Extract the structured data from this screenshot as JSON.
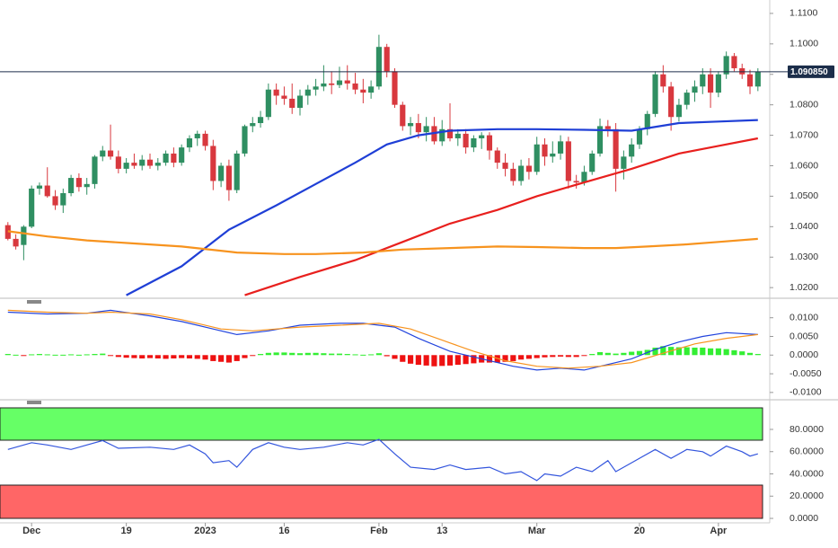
{
  "chart_data": [
    {
      "type": "candlestick",
      "xlim": [
        -1,
        96.5
      ],
      "ylim": [
        1.0168,
        1.1144
      ],
      "yticks": [
        {
          "value": 1.11,
          "label": "1.1100"
        },
        {
          "value": 1.1,
          "label": "1.1000"
        },
        {
          "value": 1.09,
          "label": "1.0900"
        },
        {
          "value": 1.08,
          "label": "1.0800"
        },
        {
          "value": 1.07,
          "label": "1.0700"
        },
        {
          "value": 1.06,
          "label": "1.0600"
        },
        {
          "value": 1.05,
          "label": "1.0500"
        },
        {
          "value": 1.04,
          "label": "1.0400"
        },
        {
          "value": 1.03,
          "label": "1.0300"
        },
        {
          "value": 1.02,
          "label": "1.0200"
        }
      ],
      "up_color": "#2f8f62",
      "down_color": "#d8383e",
      "last_price": {
        "value": 1.09085,
        "label": "1.090850"
      },
      "ohlc": [
        [
          1.0405,
          1.0415,
          1.0355,
          1.036
        ],
        [
          1.036,
          1.0375,
          1.0325,
          1.0335
        ],
        [
          1.034,
          1.0405,
          1.029,
          1.04
        ],
        [
          1.04,
          1.0535,
          1.0395,
          1.0525
        ],
        [
          1.0525,
          1.0545,
          1.0505,
          1.0535
        ],
        [
          1.0535,
          1.0595,
          1.0495,
          1.05
        ],
        [
          1.05,
          1.052,
          1.0455,
          1.047
        ],
        [
          1.047,
          1.0525,
          1.0445,
          1.051
        ],
        [
          1.051,
          1.057,
          1.05,
          1.056
        ],
        [
          1.056,
          1.0575,
          1.0515,
          1.053
        ],
        [
          1.053,
          1.056,
          1.0505,
          1.054
        ],
        [
          1.054,
          1.0635,
          1.0525,
          1.063
        ],
        [
          1.063,
          1.0665,
          1.0615,
          1.065
        ],
        [
          1.065,
          1.0735,
          1.062,
          1.063
        ],
        [
          1.063,
          1.065,
          1.0575,
          1.059
        ],
        [
          1.059,
          1.0625,
          1.0575,
          1.061
        ],
        [
          1.061,
          1.064,
          1.059,
          1.06
        ],
        [
          1.06,
          1.0635,
          1.0585,
          1.062
        ],
        [
          1.062,
          1.064,
          1.059,
          1.06
        ],
        [
          1.06,
          1.0625,
          1.0585,
          1.061
        ],
        [
          1.061,
          1.065,
          1.06,
          1.064
        ],
        [
          1.064,
          1.066,
          1.0595,
          1.061
        ],
        [
          1.061,
          1.067,
          1.06,
          1.066
        ],
        [
          1.066,
          1.07,
          1.0645,
          1.069
        ],
        [
          1.069,
          1.0715,
          1.0665,
          1.0705
        ],
        [
          1.0705,
          1.0715,
          1.065,
          1.0665
        ],
        [
          1.0665,
          1.0685,
          1.052,
          1.055
        ],
        [
          1.055,
          1.061,
          1.053,
          1.06
        ],
        [
          1.06,
          1.062,
          1.0485,
          1.052
        ],
        [
          1.052,
          1.065,
          1.051,
          1.064
        ],
        [
          1.064,
          1.0735,
          1.063,
          1.073
        ],
        [
          1.073,
          1.076,
          1.071,
          1.074
        ],
        [
          1.074,
          1.078,
          1.0725,
          1.076
        ],
        [
          1.076,
          1.087,
          1.075,
          1.085
        ],
        [
          1.085,
          1.087,
          1.08,
          1.083
        ],
        [
          1.083,
          1.086,
          1.08,
          1.082
        ],
        [
          1.082,
          1.087,
          1.077,
          1.079
        ],
        [
          1.079,
          1.085,
          1.0765,
          1.083
        ],
        [
          1.083,
          1.0865,
          1.08,
          1.085
        ],
        [
          1.085,
          1.0885,
          1.083,
          1.086
        ],
        [
          1.086,
          1.093,
          1.0845,
          1.087
        ],
        [
          1.087,
          1.091,
          1.0835,
          1.0865
        ],
        [
          1.0865,
          1.0925,
          1.0855,
          1.088
        ],
        [
          1.088,
          1.093,
          1.085,
          1.087
        ],
        [
          1.087,
          1.0905,
          1.0835,
          1.085
        ],
        [
          1.085,
          1.0885,
          1.0805,
          1.084
        ],
        [
          1.084,
          1.088,
          1.082,
          1.086
        ],
        [
          1.086,
          1.103,
          1.085,
          1.099
        ],
        [
          1.099,
          1.1,
          1.089,
          1.091
        ],
        [
          1.091,
          1.092,
          1.079,
          1.08
        ],
        [
          1.08,
          1.081,
          1.0715,
          1.073
        ],
        [
          1.073,
          1.076,
          1.07,
          1.074
        ],
        [
          1.074,
          1.077,
          1.069,
          1.071
        ],
        [
          1.071,
          1.076,
          1.068,
          1.073
        ],
        [
          1.073,
          1.076,
          1.067,
          1.068
        ],
        [
          1.068,
          1.075,
          1.0665,
          1.072
        ],
        [
          1.072,
          1.0805,
          1.068,
          1.069
        ],
        [
          1.069,
          1.072,
          1.0665,
          1.0705
        ],
        [
          1.0705,
          1.072,
          1.064,
          1.066
        ],
        [
          1.066,
          1.07,
          1.0645,
          1.069
        ],
        [
          1.069,
          1.071,
          1.0655,
          1.07
        ],
        [
          1.07,
          1.071,
          1.062,
          1.065
        ],
        [
          1.065,
          1.066,
          1.059,
          1.061
        ],
        [
          1.061,
          1.064,
          1.0565,
          1.059
        ],
        [
          1.059,
          1.061,
          1.0535,
          1.055
        ],
        [
          1.055,
          1.062,
          1.0535,
          1.06
        ],
        [
          1.06,
          1.0625,
          1.0555,
          1.058
        ],
        [
          1.058,
          1.0695,
          1.057,
          1.067
        ],
        [
          1.067,
          1.069,
          1.06,
          1.063
        ],
        [
          1.063,
          1.068,
          1.061,
          1.064
        ],
        [
          1.064,
          1.07,
          1.062,
          1.068
        ],
        [
          1.068,
          1.0695,
          1.0525,
          1.055
        ],
        [
          1.055,
          1.057,
          1.0525,
          1.0545
        ],
        [
          1.0545,
          1.06,
          1.0535,
          1.058
        ],
        [
          1.058,
          1.065,
          1.057,
          1.064
        ],
        [
          1.064,
          1.0755,
          1.063,
          1.073
        ],
        [
          1.073,
          1.075,
          1.0695,
          1.072
        ],
        [
          1.072,
          1.074,
          1.0515,
          1.059
        ],
        [
          1.059,
          1.065,
          1.0555,
          1.063
        ],
        [
          1.063,
          1.069,
          1.061,
          1.067
        ],
        [
          1.067,
          1.073,
          1.0655,
          1.072
        ],
        [
          1.072,
          1.078,
          1.07,
          1.077
        ],
        [
          1.077,
          1.091,
          1.076,
          1.09
        ],
        [
          1.09,
          1.093,
          1.084,
          1.086
        ],
        [
          1.086,
          1.0875,
          1.0715,
          1.076
        ],
        [
          1.076,
          1.082,
          1.0745,
          1.08
        ],
        [
          1.08,
          1.085,
          1.0785,
          1.084
        ],
        [
          1.084,
          1.088,
          1.081,
          1.086
        ],
        [
          1.086,
          1.092,
          1.0835,
          1.09
        ],
        [
          1.09,
          1.092,
          1.079,
          1.084
        ],
        [
          1.084,
          1.091,
          1.0825,
          1.09
        ],
        [
          1.09,
          1.0975,
          1.0885,
          1.096
        ],
        [
          1.096,
          1.097,
          1.091,
          1.092
        ],
        [
          1.092,
          1.0935,
          1.0885,
          1.09
        ],
        [
          1.09,
          1.0915,
          1.0835,
          1.086
        ],
        [
          1.086,
          1.092,
          1.0845,
          1.0909
        ]
      ],
      "series": [
        {
          "color": "#1f3fd6",
          "x": [
            15,
            22,
            28,
            34,
            39,
            44,
            48,
            52,
            56,
            62,
            67,
            73,
            79,
            85,
            90,
            95
          ],
          "values": [
            1.0175,
            1.027,
            1.039,
            1.047,
            1.054,
            1.061,
            1.067,
            1.07,
            1.0715,
            1.072,
            1.072,
            1.0718,
            1.0715,
            1.074,
            1.0745,
            1.075
          ]
        },
        {
          "color": "#e8201e",
          "x": [
            30,
            37,
            44,
            50,
            56,
            62,
            67,
            73,
            79,
            85,
            90,
            95
          ],
          "values": [
            1.0175,
            1.0235,
            1.029,
            1.035,
            1.041,
            1.0455,
            1.05,
            1.0545,
            1.059,
            1.064,
            1.0665,
            1.069
          ]
        },
        {
          "color": "#f7931e",
          "x": [
            0,
            5,
            10,
            16,
            22,
            29,
            35,
            39,
            45,
            50,
            56,
            62,
            67,
            73,
            77,
            81,
            86,
            90,
            95
          ],
          "values": [
            1.0385,
            1.0368,
            1.0355,
            1.0345,
            1.0335,
            1.0315,
            1.031,
            1.031,
            1.0315,
            1.0325,
            1.033,
            1.0335,
            1.0333,
            1.033,
            1.033,
            1.0335,
            1.0342,
            1.035,
            1.036
          ]
        }
      ]
    },
    {
      "type": "line",
      "xlim": [
        -1,
        96.5
      ],
      "ylim": [
        -0.011,
        0.0145
      ],
      "yticks": [
        {
          "value": 0.01,
          "label": "0.0100"
        },
        {
          "value": 0.005,
          "label": "0.0050"
        },
        {
          "value": 0,
          "label": "0.0000"
        },
        {
          "value": -0.005,
          "label": "-0.0050"
        },
        {
          "value": -0.01,
          "label": "-0.0100"
        }
      ],
      "histogram": {
        "up_color": "#33ee33",
        "down_color": "#ee1111",
        "values": [
          0.0003,
          0.0001,
          -0.0001,
          0.0002,
          0.0003,
          0.0002,
          0.0001,
          0.0001,
          0.0002,
          0.0001,
          0.0002,
          0.0003,
          0.0004,
          -0.0002,
          -0.0005,
          -0.0007,
          -0.0008,
          -0.0009,
          -0.0008,
          -0.0009,
          -0.001,
          -0.0009,
          -0.0008,
          -0.0009,
          -0.001,
          -0.0012,
          -0.0016,
          -0.0018,
          -0.002,
          -0.0016,
          -0.0008,
          -0.0002,
          0.0003,
          0.0006,
          0.0007,
          0.0007,
          0.0006,
          0.0005,
          0.0006,
          0.0006,
          0.0005,
          0.0004,
          0.0004,
          0.0003,
          0.0002,
          0.0001,
          0.0002,
          0.0005,
          -0.0003,
          -0.001,
          -0.0018,
          -0.0023,
          -0.0026,
          -0.0028,
          -0.003,
          -0.0029,
          -0.0028,
          -0.0026,
          -0.0024,
          -0.0022,
          -0.002,
          -0.002,
          -0.002,
          -0.0018,
          -0.0016,
          -0.0012,
          -0.001,
          -0.0008,
          -0.0006,
          -0.0005,
          -0.0004,
          -0.0005,
          -0.0005,
          -0.0002,
          0.0003,
          0.0008,
          0.0006,
          0.0004,
          0.0006,
          0.0009,
          0.0011,
          0.0014,
          0.002,
          0.0024,
          0.0022,
          0.0021,
          0.0021,
          0.002,
          0.002,
          0.0018,
          0.0018,
          0.0016,
          0.0013,
          0.001,
          0.0006,
          0.0003
        ]
      },
      "series": [
        {
          "color": "#2244dd",
          "x": [
            0,
            5,
            10,
            13,
            18,
            22,
            26,
            29,
            33,
            37,
            42,
            45,
            47,
            49,
            52,
            56,
            60,
            64,
            67,
            70,
            73,
            76,
            79,
            82,
            85,
            88,
            91,
            95
          ],
          "values": [
            0.0115,
            0.011,
            0.0112,
            0.012,
            0.0105,
            0.009,
            0.007,
            0.0055,
            0.0065,
            0.008,
            0.0085,
            0.0085,
            0.008,
            0.0075,
            0.0045,
            0.001,
            -0.001,
            -0.003,
            -0.004,
            -0.0035,
            -0.004,
            -0.0025,
            -0.001,
            0.0015,
            0.0035,
            0.005,
            0.006,
            0.0055
          ]
        },
        {
          "color": "#f7931e",
          "x": [
            0,
            5,
            10,
            13,
            18,
            22,
            27,
            31,
            37,
            42,
            47,
            51,
            55,
            59,
            63,
            67,
            71,
            75,
            79,
            83,
            87,
            91,
            95
          ],
          "values": [
            0.012,
            0.0115,
            0.0112,
            0.0115,
            0.011,
            0.0095,
            0.007,
            0.0065,
            0.0075,
            0.008,
            0.0085,
            0.007,
            0.004,
            0.001,
            -0.0015,
            -0.003,
            -0.0035,
            -0.003,
            -0.002,
            0.0005,
            0.003,
            0.0045,
            0.0055
          ]
        }
      ]
    },
    {
      "type": "line",
      "xlim": [
        -1,
        96.5
      ],
      "ylim": [
        -4,
        102.6
      ],
      "yticks": [
        {
          "value": 80,
          "label": "80.0000"
        },
        {
          "value": 60,
          "label": "60.0000"
        },
        {
          "value": 40,
          "label": "40.0000"
        },
        {
          "value": 20,
          "label": "20.0000"
        },
        {
          "value": 0,
          "label": "0.0000"
        }
      ],
      "xticks": [
        {
          "value": 3,
          "label": "Dec"
        },
        {
          "value": 15,
          "label": "19"
        },
        {
          "value": 25,
          "label": "2023"
        },
        {
          "value": 35,
          "label": "16"
        },
        {
          "value": 47,
          "label": "Feb"
        },
        {
          "value": 55,
          "label": "13"
        },
        {
          "value": 67,
          "label": "Mar"
        },
        {
          "value": 80,
          "label": "20"
        },
        {
          "value": 90,
          "label": "Apr"
        }
      ],
      "series": [
        {
          "color": "#3355dd",
          "x": [
            0,
            3,
            5,
            8,
            10,
            12,
            14,
            18,
            21,
            23,
            25,
            26,
            28,
            29,
            31,
            33,
            35,
            37,
            40,
            43,
            45,
            47,
            49,
            51,
            54,
            56,
            58,
            61,
            63,
            65,
            66,
            67,
            68,
            70,
            72,
            74,
            76,
            77,
            79,
            82,
            84,
            86,
            88,
            89,
            91,
            93,
            94,
            95
          ],
          "values": [
            62,
            68,
            66,
            62,
            66,
            70,
            63,
            64,
            62,
            66,
            58,
            50,
            52,
            46,
            62,
            68,
            64,
            62,
            64,
            68,
            66,
            71,
            58,
            46,
            44,
            48,
            44,
            46,
            40,
            42,
            38,
            34,
            40,
            38,
            46,
            42,
            52,
            42,
            50,
            62,
            54,
            62,
            60,
            56,
            65,
            60,
            56,
            58
          ]
        }
      ]
    }
  ]
}
